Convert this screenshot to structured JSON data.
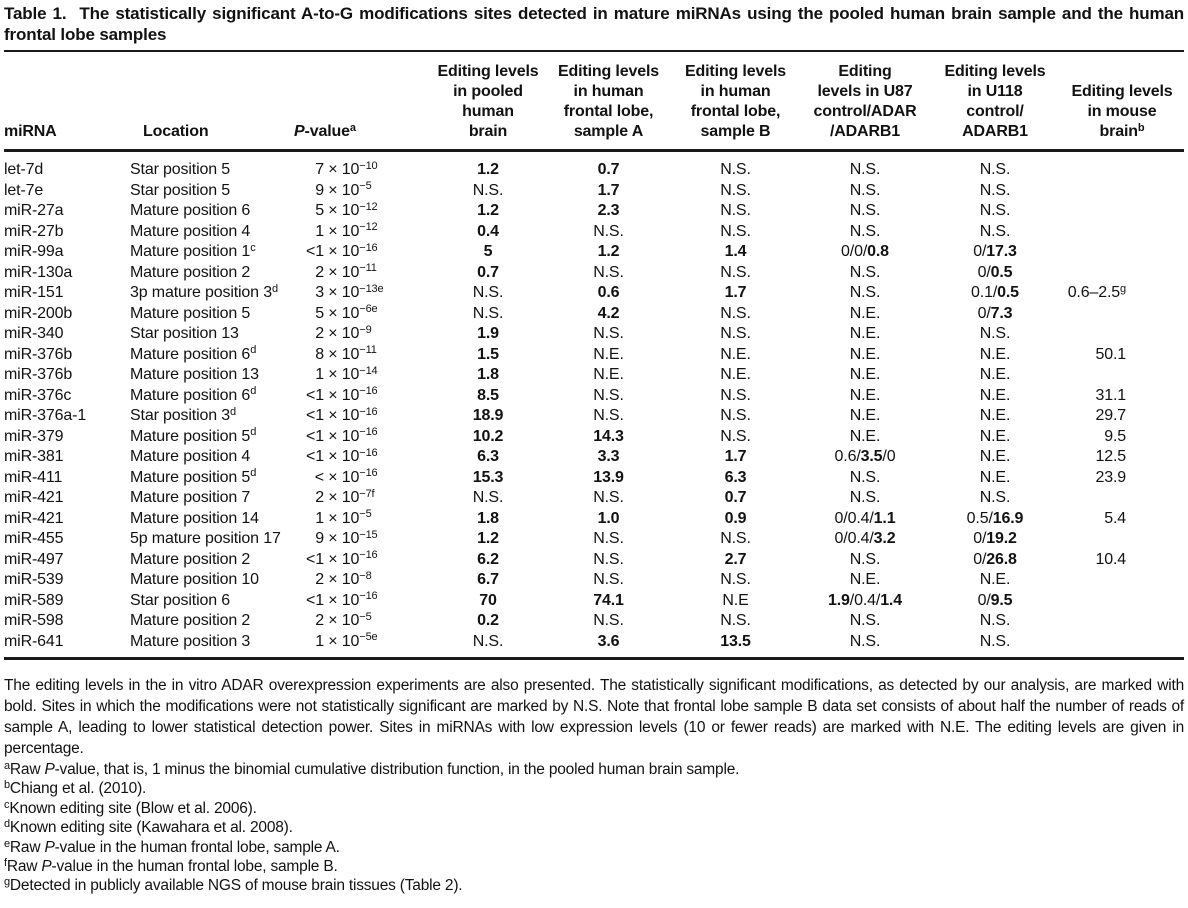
{
  "title": {
    "label": "Table 1.",
    "text": "The statistically significant A-to-G modifications sites detected in mature miRNAs using the pooled human brain sample and the human frontal lobe samples"
  },
  "table": {
    "headers": [
      {
        "id": "mirna",
        "lines": [
          "miRNA"
        ]
      },
      {
        "id": "location",
        "lines": [
          "Location"
        ]
      },
      {
        "id": "pvalue",
        "lines": [
          "//P//-value^a^"
        ]
      },
      {
        "id": "pooled-brain",
        "lines": [
          "Editing levels",
          "in pooled",
          "human",
          "brain"
        ]
      },
      {
        "id": "frontal-a",
        "lines": [
          "Editing levels",
          "in human",
          "frontal lobe,",
          "sample A"
        ]
      },
      {
        "id": "frontal-b",
        "lines": [
          "Editing levels",
          "in human",
          "frontal lobe,",
          "sample B"
        ]
      },
      {
        "id": "u87",
        "lines": [
          "Editing",
          "levels in U87",
          "control/ADAR",
          "/ADARB1"
        ]
      },
      {
        "id": "u118",
        "lines": [
          "Editing levels",
          "in U118",
          "control/",
          "ADARB1"
        ]
      },
      {
        "id": "mouse-brain",
        "lines": [
          "Editing levels",
          "in mouse",
          "brain^b^"
        ]
      }
    ],
    "rows": [
      {
        "mirna": "let-7d",
        "location": "Star position 5",
        "p_mantissa": "7",
        "p_exponent": "−10",
        "pooled": "**1.2**",
        "sampleA": "**0.7**",
        "sampleB": "N.S.",
        "u87": "N.S.",
        "u118": "N.S.",
        "mouse": ""
      },
      {
        "mirna": "let-7e",
        "location": "Star position 5",
        "p_mantissa": "9",
        "p_exponent": "−5",
        "pooled": "N.S.",
        "sampleA": "**1.7**",
        "sampleB": "N.S.",
        "u87": "N.S.",
        "u118": "N.S.",
        "mouse": ""
      },
      {
        "mirna": "miR-27a",
        "location": "Mature position 6",
        "p_mantissa": "5",
        "p_exponent": "−12",
        "pooled": "**1.2**",
        "sampleA": "**2.3**",
        "sampleB": "N.S.",
        "u87": "N.S.",
        "u118": "N.S.",
        "mouse": ""
      },
      {
        "mirna": "miR-27b",
        "location": "Mature position 4",
        "p_mantissa": "1",
        "p_exponent": "−12",
        "pooled": "**0.4**",
        "sampleA": "N.S.",
        "sampleB": "N.S.",
        "u87": "N.S.",
        "u118": "N.S.",
        "mouse": ""
      },
      {
        "mirna": "miR-99a",
        "location": "Mature position 1^c^",
        "p_mantissa": "<1",
        "p_exponent": "−16",
        "pooled": "**5**",
        "sampleA": "**1.2**",
        "sampleB": "**1.4**",
        "u87": "0/0/**0.8**",
        "u118": "0/**17.3**",
        "mouse": ""
      },
      {
        "mirna": "miR-130a",
        "location": "Mature position 2",
        "p_mantissa": "2",
        "p_exponent": "−11",
        "pooled": "**0.7**",
        "sampleA": "N.S.",
        "sampleB": "N.S.",
        "u87": "N.S.",
        "u118": "0/**0.5**",
        "mouse": ""
      },
      {
        "mirna": "miR-151",
        "location": "3p mature position 3^d^",
        "p_mantissa": "3",
        "p_exponent": "−13e",
        "pooled": "N.S.",
        "sampleA": "**0.6**",
        "sampleB": "**1.7**",
        "u87": "N.S.",
        "u118": "0.1/**0.5**",
        "mouse": "0.6–2.5^g^"
      },
      {
        "mirna": "miR-200b",
        "location": "Mature position 5",
        "p_mantissa": "5",
        "p_exponent": "−6e",
        "pooled": "N.S.",
        "sampleA": "**4.2**",
        "sampleB": "N.S.",
        "u87": "N.E.",
        "u118": "0/**7.3**",
        "mouse": ""
      },
      {
        "mirna": "miR-340",
        "location": "Star position 13",
        "p_mantissa": "2",
        "p_exponent": "−9",
        "pooled": "**1.9**",
        "sampleA": "N.S.",
        "sampleB": "N.S.",
        "u87": "N.E.",
        "u118": "N.S.",
        "mouse": ""
      },
      {
        "mirna": "miR-376b",
        "location": "Mature position 6^d^",
        "p_mantissa": "8",
        "p_exponent": "−11",
        "pooled": "**1.5**",
        "sampleA": "N.E.",
        "sampleB": "N.E.",
        "u87": "N.E.",
        "u118": "N.E.",
        "mouse": "50.1"
      },
      {
        "mirna": "miR-376b",
        "location": "Mature position 13",
        "p_mantissa": "1",
        "p_exponent": "−14",
        "pooled": "**1.8**",
        "sampleA": "N.E.",
        "sampleB": "N.E.",
        "u87": "N.E.",
        "u118": "N.E.",
        "mouse": ""
      },
      {
        "mirna": "miR-376c",
        "location": "Mature position 6^d^",
        "p_mantissa": "<1",
        "p_exponent": "−16",
        "pooled": "**8.5**",
        "sampleA": "N.S.",
        "sampleB": "N.S.",
        "u87": "N.E.",
        "u118": "N.E.",
        "mouse": "31.1"
      },
      {
        "mirna": "miR-376a-1",
        "location": "Star position 3^d^",
        "p_mantissa": "<1",
        "p_exponent": "−16",
        "pooled": "**18.9**",
        "sampleA": "N.S.",
        "sampleB": "N.S.",
        "u87": "N.E.",
        "u118": "N.E.",
        "mouse": "29.7"
      },
      {
        "mirna": "miR-379",
        "location": "Mature position 5^d^",
        "p_mantissa": "<1",
        "p_exponent": "−16",
        "pooled": "**10.2**",
        "sampleA": "**14.3**",
        "sampleB": "N.S.",
        "u87": "N.E.",
        "u118": "N.E.",
        "mouse": "9.5"
      },
      {
        "mirna": "miR-381",
        "location": "Mature position 4",
        "p_mantissa": "<1",
        "p_exponent": "−16",
        "pooled": "**6.3**",
        "sampleA": "**3.3**",
        "sampleB": "**1.7**",
        "u87": "0.6/**3.5**/0",
        "u118": "N.E.",
        "mouse": "12.5"
      },
      {
        "mirna": "miR-411",
        "location": "Mature position 5^d^",
        "p_mantissa": "<",
        "p_exponent": "−16",
        "pooled": "**15.3**",
        "sampleA": "**13.9**",
        "sampleB": "**6.3**",
        "u87": "N.S.",
        "u118": "N.E.",
        "mouse": "23.9"
      },
      {
        "mirna": "miR-421",
        "location": "Mature position 7",
        "p_mantissa": "2",
        "p_exponent": "−7f",
        "pooled": "N.S.",
        "sampleA": "N.S.",
        "sampleB": "**0.7**",
        "u87": "N.S.",
        "u118": "N.S.",
        "mouse": ""
      },
      {
        "mirna": "miR-421",
        "location": "Mature position 14",
        "p_mantissa": "1",
        "p_exponent": "−5",
        "pooled": "**1.8**",
        "sampleA": "**1.0**",
        "sampleB": "**0.9**",
        "u87": "0/0.4/**1.1**",
        "u118": "0.5/**16.9**",
        "mouse": "5.4"
      },
      {
        "mirna": "miR-455",
        "location": "5p mature position 17",
        "p_mantissa": "9",
        "p_exponent": "−15",
        "pooled": "**1.2**",
        "sampleA": "N.S.",
        "sampleB": "N.S.",
        "u87": "0/0.4/**3.2**",
        "u118": "0/**19.2**",
        "mouse": ""
      },
      {
        "mirna": "miR-497",
        "location": "Mature position 2",
        "p_mantissa": "<1",
        "p_exponent": "−16",
        "pooled": "**6.2**",
        "sampleA": "N.S.",
        "sampleB": "**2.7**",
        "u87": "N.S.",
        "u118": "0/**26.8**",
        "mouse": "10.4"
      },
      {
        "mirna": "miR-539",
        "location": "Mature position 10",
        "p_mantissa": "2",
        "p_exponent": "−8",
        "pooled": "**6.7**",
        "sampleA": "N.S.",
        "sampleB": "N.S.",
        "u87": "N.E.",
        "u118": "N.E.",
        "mouse": ""
      },
      {
        "mirna": "miR-589",
        "location": "Star position 6",
        "p_mantissa": "<1",
        "p_exponent": "−16",
        "pooled": "**70**",
        "sampleA": "**74.1**",
        "sampleB": "N.E",
        "u87": "**1.9**/0.4/**1.4**",
        "u118": "0/**9.5**",
        "mouse": ""
      },
      {
        "mirna": "miR-598",
        "location": "Mature position 2",
        "p_mantissa": "2",
        "p_exponent": "−5",
        "pooled": "**0.2**",
        "sampleA": "N.S.",
        "sampleB": "N.S.",
        "u87": "N.S.",
        "u118": "N.S.",
        "mouse": ""
      },
      {
        "mirna": "miR-641",
        "location": "Mature position 3",
        "p_mantissa": "1",
        "p_exponent": "−5e",
        "pooled": "N.S.",
        "sampleA": "**3.6**",
        "sampleB": "**13.5**",
        "u87": "N.S.",
        "u118": "N.S.",
        "mouse": ""
      }
    ]
  },
  "notes": {
    "general": "The editing levels in the in vitro ADAR overexpression experiments are also presented. The statistically significant modifications, as detected by our analysis, are marked with bold. Sites in which the modifications were not statistically significant are marked by N.S. Note that frontal lobe sample B data set consists of about half the number of reads of sample A, leading to lower statistical detection power. Sites in miRNAs with low expression levels (10 or fewer reads) are marked with N.E. The editing levels are given in percentage.",
    "footnotes": [
      {
        "mark": "a",
        "text": "Raw //P//-value, that is, 1 minus the binomial cumulative distribution function, in the pooled human brain sample."
      },
      {
        "mark": "b",
        "text": "Chiang et al. (2010)."
      },
      {
        "mark": "c",
        "text": "Known editing site (Blow et al. 2006)."
      },
      {
        "mark": "d",
        "text": "Known editing site (Kawahara et al. 2008)."
      },
      {
        "mark": "e",
        "text": "Raw //P//-value in the human frontal lobe, sample A."
      },
      {
        "mark": "f",
        "text": "Raw //P//-value in the human frontal lobe, sample B."
      },
      {
        "mark": "g",
        "text": "Detected in publicly available NGS of mouse brain tissues (Table 2)."
      }
    ]
  },
  "colors": {
    "text": "#121212",
    "background": "#ffffff",
    "rule": "#1a1a1a"
  }
}
